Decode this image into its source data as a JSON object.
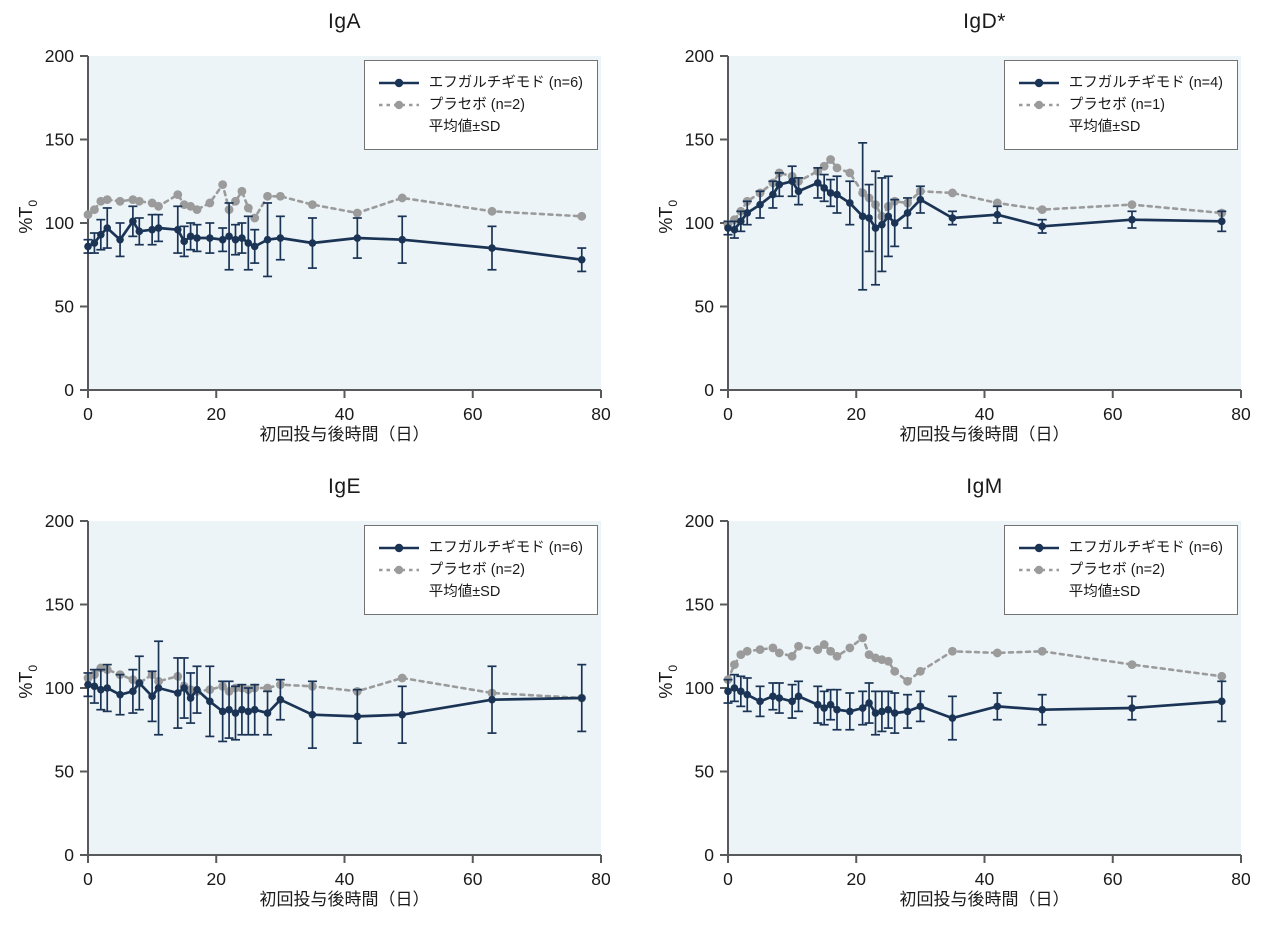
{
  "labels": {
    "y_main": "%T",
    "y_sub": "0"
  },
  "colors": {
    "treatment": "#1b3455",
    "placebo": "#9b9b9b",
    "plot_bg": "#ecf4f7",
    "axis": "#58595b",
    "text": "#1a1a1a",
    "legend_border": "#737373",
    "page_bg": "#ffffff"
  },
  "legend_note": "平均値±SD",
  "chart_data": [
    {
      "type": "line",
      "title": "IgA",
      "xlabel": "初回投与後時間（日）",
      "ylabel": "%T0",
      "xlim": [
        0,
        80
      ],
      "ylim": [
        0,
        200
      ],
      "x_ticks": [
        0,
        20,
        40,
        60,
        80
      ],
      "y_ticks": [
        0,
        50,
        100,
        150,
        200
      ],
      "legend_position": "top-right",
      "note": "平均値±SD",
      "x": [
        0,
        1,
        2,
        3,
        5,
        7,
        8,
        10,
        11,
        14,
        15,
        16,
        17,
        19,
        21,
        22,
        23,
        24,
        25,
        26,
        28,
        30,
        35,
        42,
        49,
        63,
        77
      ],
      "series": [
        {
          "name": "エフガルチギモド (n=6)",
          "style": "solid",
          "values": [
            86,
            88,
            93,
            97,
            90,
            101,
            95,
            96,
            97,
            96,
            89,
            92,
            91,
            91,
            90,
            92,
            90,
            91,
            88,
            86,
            90,
            91,
            88,
            91,
            90,
            85,
            78
          ],
          "sd": [
            4,
            6,
            9,
            12,
            10,
            9,
            8,
            9,
            8,
            14,
            9,
            8,
            8,
            9,
            7,
            20,
            9,
            9,
            16,
            10,
            22,
            13,
            15,
            12,
            14,
            13,
            7
          ]
        },
        {
          "name": "プラセボ (n=2)",
          "style": "dashed",
          "values": [
            105,
            108,
            113,
            114,
            113,
            114,
            113,
            112,
            110,
            117,
            111,
            110,
            108,
            112,
            123,
            108,
            113,
            119,
            109,
            103,
            116,
            116,
            111,
            106,
            115,
            107,
            104
          ],
          "sd": null
        }
      ]
    },
    {
      "type": "line",
      "title": "IgD*",
      "xlabel": "初回投与後時間（日）",
      "ylabel": "%T0",
      "xlim": [
        0,
        80
      ],
      "ylim": [
        0,
        200
      ],
      "x_ticks": [
        0,
        20,
        40,
        60,
        80
      ],
      "y_ticks": [
        0,
        50,
        100,
        150,
        200
      ],
      "legend_position": "top-right",
      "note": "平均値±SD",
      "x": [
        0,
        1,
        2,
        3,
        5,
        7,
        8,
        10,
        11,
        14,
        15,
        16,
        17,
        19,
        21,
        22,
        23,
        24,
        25,
        26,
        28,
        30,
        35,
        42,
        49,
        63,
        77
      ],
      "series": [
        {
          "name": "エフガルチギモド (n=4)",
          "style": "solid",
          "values": [
            97,
            96,
            101,
            106,
            111,
            117,
            123,
            125,
            119,
            124,
            121,
            118,
            117,
            112,
            104,
            103,
            97,
            99,
            104,
            100,
            106,
            114,
            103,
            105,
            98,
            102,
            101
          ],
          "sd": [
            4,
            5,
            6,
            7,
            8,
            8,
            7,
            9,
            8,
            9,
            8,
            8,
            11,
            13,
            44,
            20,
            34,
            28,
            24,
            14,
            9,
            8,
            4,
            5,
            4,
            5,
            6
          ]
        },
        {
          "name": "プラセボ (n=1)",
          "style": "dashed",
          "values": [
            99,
            102,
            107,
            113,
            118,
            124,
            130,
            128,
            125,
            131,
            134,
            138,
            133,
            130,
            118,
            115,
            111,
            104,
            110,
            113,
            112,
            119,
            118,
            112,
            108,
            111,
            106
          ],
          "sd": null
        }
      ]
    },
    {
      "type": "line",
      "title": "IgE",
      "xlabel": "初回投与後時間（日）",
      "ylabel": "%T0",
      "xlim": [
        0,
        80
      ],
      "ylim": [
        0,
        200
      ],
      "x_ticks": [
        0,
        20,
        40,
        60,
        80
      ],
      "y_ticks": [
        0,
        50,
        100,
        150,
        200
      ],
      "legend_position": "top-right",
      "note": "平均値±SD",
      "x": [
        0,
        1,
        2,
        3,
        5,
        7,
        8,
        10,
        11,
        14,
        15,
        16,
        17,
        19,
        21,
        22,
        23,
        24,
        25,
        26,
        28,
        30,
        35,
        42,
        49,
        63,
        77
      ],
      "series": [
        {
          "name": "エフガルチギモド (n=6)",
          "style": "solid",
          "values": [
            102,
            101,
            99,
            100,
            96,
            98,
            103,
            95,
            100,
            97,
            100,
            94,
            99,
            92,
            86,
            87,
            85,
            87,
            86,
            87,
            85,
            93,
            84,
            83,
            84,
            93,
            94
          ],
          "sd": [
            7,
            10,
            12,
            14,
            12,
            13,
            16,
            15,
            28,
            21,
            18,
            15,
            14,
            21,
            18,
            17,
            16,
            15,
            14,
            15,
            13,
            12,
            20,
            16,
            17,
            20,
            20
          ]
        },
        {
          "name": "プラセボ (n=2)",
          "style": "dashed",
          "values": [
            106,
            108,
            112,
            111,
            108,
            105,
            103,
            108,
            104,
            107,
            101,
            99,
            98,
            99,
            101,
            98,
            100,
            100,
            99,
            100,
            100,
            102,
            101,
            98,
            106,
            97,
            94
          ],
          "sd": null
        }
      ]
    },
    {
      "type": "line",
      "title": "IgM",
      "xlabel": "初回投与後時間（日）",
      "ylabel": "%T0",
      "xlim": [
        0,
        80
      ],
      "ylim": [
        0,
        200
      ],
      "x_ticks": [
        0,
        20,
        40,
        60,
        80
      ],
      "y_ticks": [
        0,
        50,
        100,
        150,
        200
      ],
      "legend_position": "top-right",
      "note": "平均値±SD",
      "x": [
        0,
        1,
        2,
        3,
        5,
        7,
        8,
        10,
        11,
        14,
        15,
        16,
        17,
        19,
        21,
        22,
        23,
        24,
        25,
        26,
        28,
        30,
        35,
        42,
        49,
        63,
        77
      ],
      "series": [
        {
          "name": "エフガルチギモド (n=6)",
          "style": "solid",
          "values": [
            98,
            100,
            98,
            96,
            92,
            95,
            94,
            92,
            95,
            90,
            88,
            90,
            87,
            86,
            88,
            91,
            85,
            86,
            87,
            85,
            86,
            89,
            82,
            89,
            87,
            88,
            92
          ],
          "sd": [
            7,
            8,
            9,
            10,
            9,
            8,
            9,
            10,
            9,
            11,
            10,
            9,
            12,
            11,
            10,
            12,
            13,
            12,
            11,
            12,
            10,
            9,
            13,
            8,
            9,
            7,
            12
          ]
        },
        {
          "name": "プラセボ (n=2)",
          "style": "dashed",
          "values": [
            105,
            114,
            120,
            122,
            123,
            124,
            121,
            119,
            125,
            123,
            126,
            122,
            119,
            124,
            130,
            120,
            118,
            117,
            116,
            110,
            104,
            110,
            122,
            121,
            122,
            114,
            107
          ],
          "sd": null
        }
      ]
    }
  ]
}
